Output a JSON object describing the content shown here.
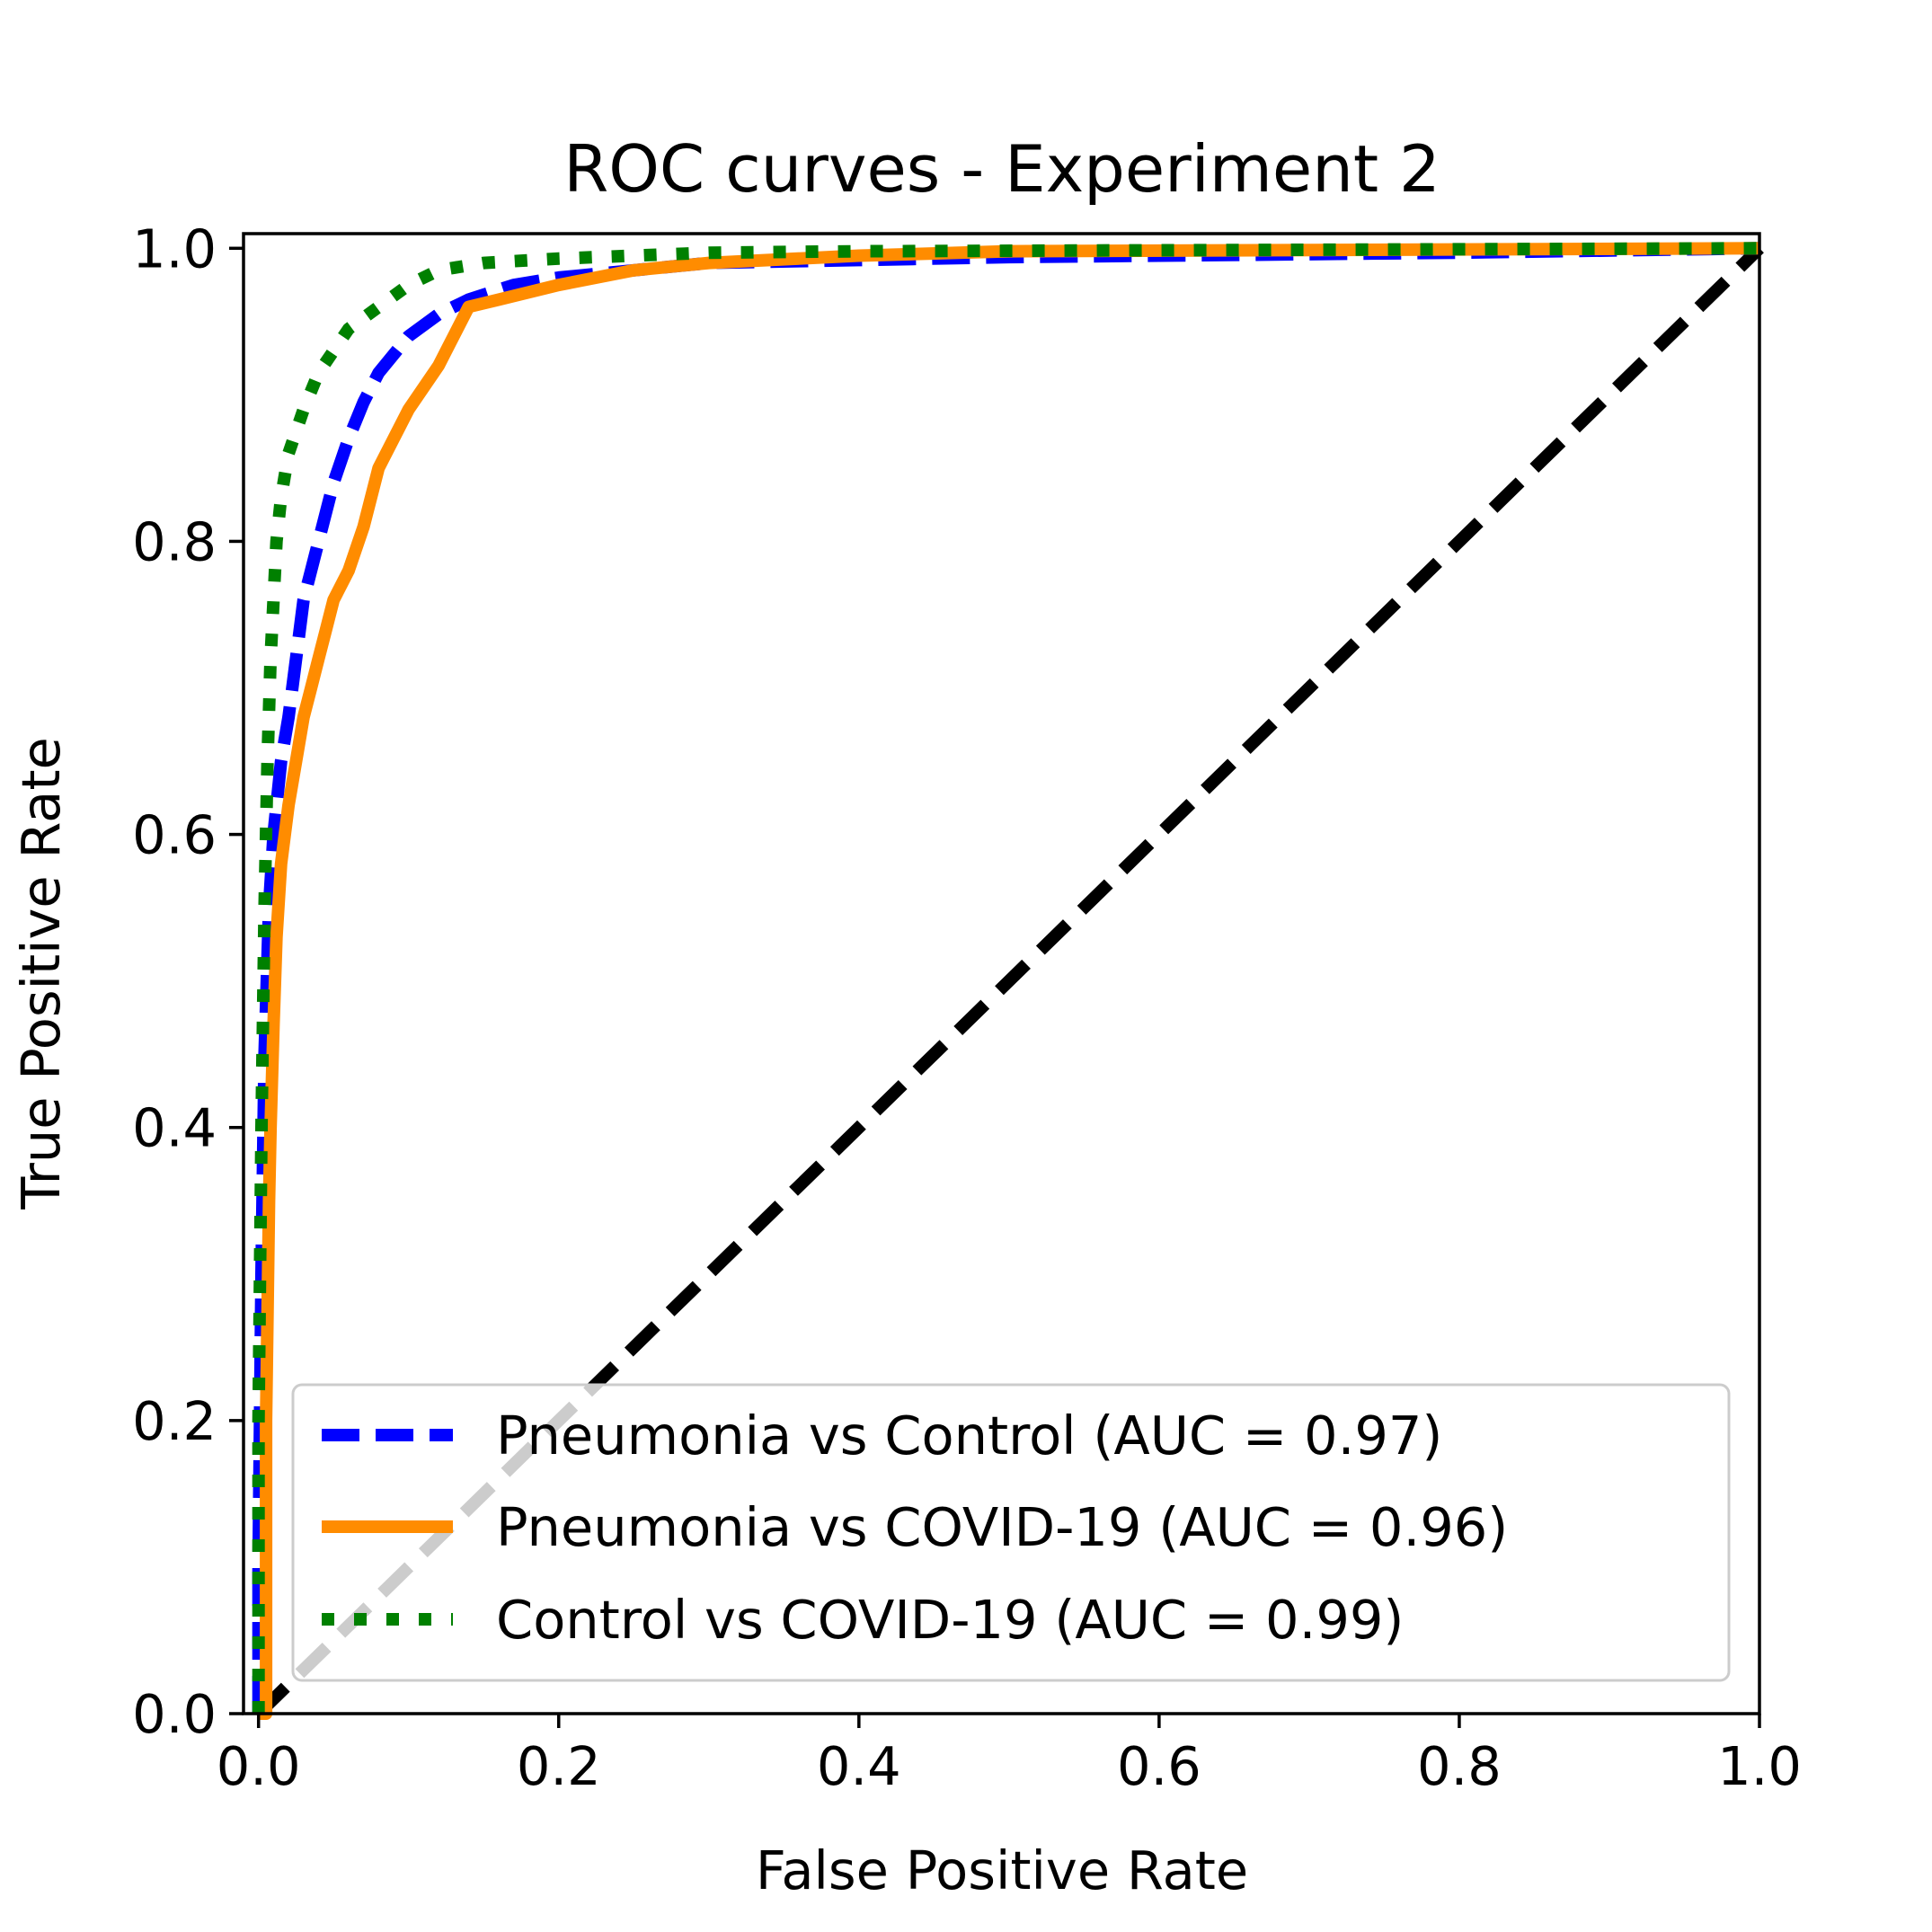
{
  "chart_data": {
    "type": "line",
    "title": "ROC curves - Experiment 2",
    "xlabel": "False Positive Rate",
    "ylabel": "True Positive Rate",
    "xlim": [
      -0.01,
      1.0
    ],
    "ylim": [
      0.0,
      1.01
    ],
    "grid": false,
    "legend_position": "lower-right",
    "x_ticks": [
      0.0,
      0.2,
      0.4,
      0.6,
      0.8,
      1.0
    ],
    "x_tick_labels": [
      "0.0",
      "0.2",
      "0.4",
      "0.6",
      "0.8",
      "1.0"
    ],
    "y_ticks": [
      0.0,
      0.2,
      0.4,
      0.6,
      0.8,
      1.0
    ],
    "y_tick_labels": [
      "0.0",
      "0.2",
      "0.4",
      "0.6",
      "0.8",
      "1.0"
    ],
    "series": [
      {
        "name": "Pneumonia vs Control (AUC = 0.97)",
        "color": "#0000ff",
        "style": "dashed",
        "x": [
          0.0,
          0.0,
          0.002,
          0.004,
          0.007,
          0.01,
          0.015,
          0.02,
          0.025,
          0.03,
          0.04,
          0.05,
          0.06,
          0.07,
          0.08,
          0.1,
          0.12,
          0.14,
          0.17,
          0.2,
          0.25,
          0.3,
          0.4,
          0.5,
          0.6,
          0.8,
          1.0
        ],
        "y": [
          0.0,
          0.1,
          0.3,
          0.45,
          0.55,
          0.6,
          0.65,
          0.68,
          0.72,
          0.76,
          0.8,
          0.84,
          0.87,
          0.895,
          0.915,
          0.94,
          0.955,
          0.965,
          0.975,
          0.98,
          0.985,
          0.99,
          0.992,
          0.994,
          0.995,
          0.997,
          1.0
        ]
      },
      {
        "name": "Pneumonia vs COVID-19 (AUC = 0.96)",
        "color": "#ff8c00",
        "style": "solid",
        "x": [
          0.0,
          0.005,
          0.005,
          0.007,
          0.008,
          0.01,
          0.012,
          0.015,
          0.02,
          0.025,
          0.03,
          0.035,
          0.04,
          0.045,
          0.05,
          0.06,
          0.07,
          0.08,
          0.09,
          0.1,
          0.12,
          0.14,
          0.16,
          0.2,
          0.25,
          0.3,
          0.4,
          0.5,
          1.0
        ],
        "y": [
          0.0,
          0.0,
          0.2,
          0.35,
          0.4,
          0.47,
          0.53,
          0.58,
          0.62,
          0.65,
          0.68,
          0.7,
          0.72,
          0.74,
          0.76,
          0.78,
          0.81,
          0.85,
          0.87,
          0.89,
          0.92,
          0.96,
          0.965,
          0.975,
          0.985,
          0.99,
          0.995,
          0.998,
          1.0
        ]
      },
      {
        "name": "Control vs COVID-19 (AUC = 0.99)",
        "color": "#008000",
        "style": "dotted",
        "x": [
          0.0,
          0.0,
          0.002,
          0.004,
          0.006,
          0.008,
          0.01,
          0.012,
          0.015,
          0.02,
          0.03,
          0.04,
          0.05,
          0.06,
          0.08,
          0.1,
          0.12,
          0.15,
          0.2,
          0.25,
          0.3,
          0.4,
          1.0
        ],
        "y": [
          0.0,
          0.2,
          0.4,
          0.55,
          0.65,
          0.72,
          0.76,
          0.8,
          0.83,
          0.86,
          0.89,
          0.915,
          0.93,
          0.945,
          0.96,
          0.975,
          0.985,
          0.99,
          0.993,
          0.995,
          0.997,
          0.998,
          1.0
        ]
      },
      {
        "name": "",
        "color": "#000000",
        "style": "dashed",
        "x": [
          0.0,
          1.0
        ],
        "y": [
          0.0,
          1.0
        ]
      }
    ]
  }
}
